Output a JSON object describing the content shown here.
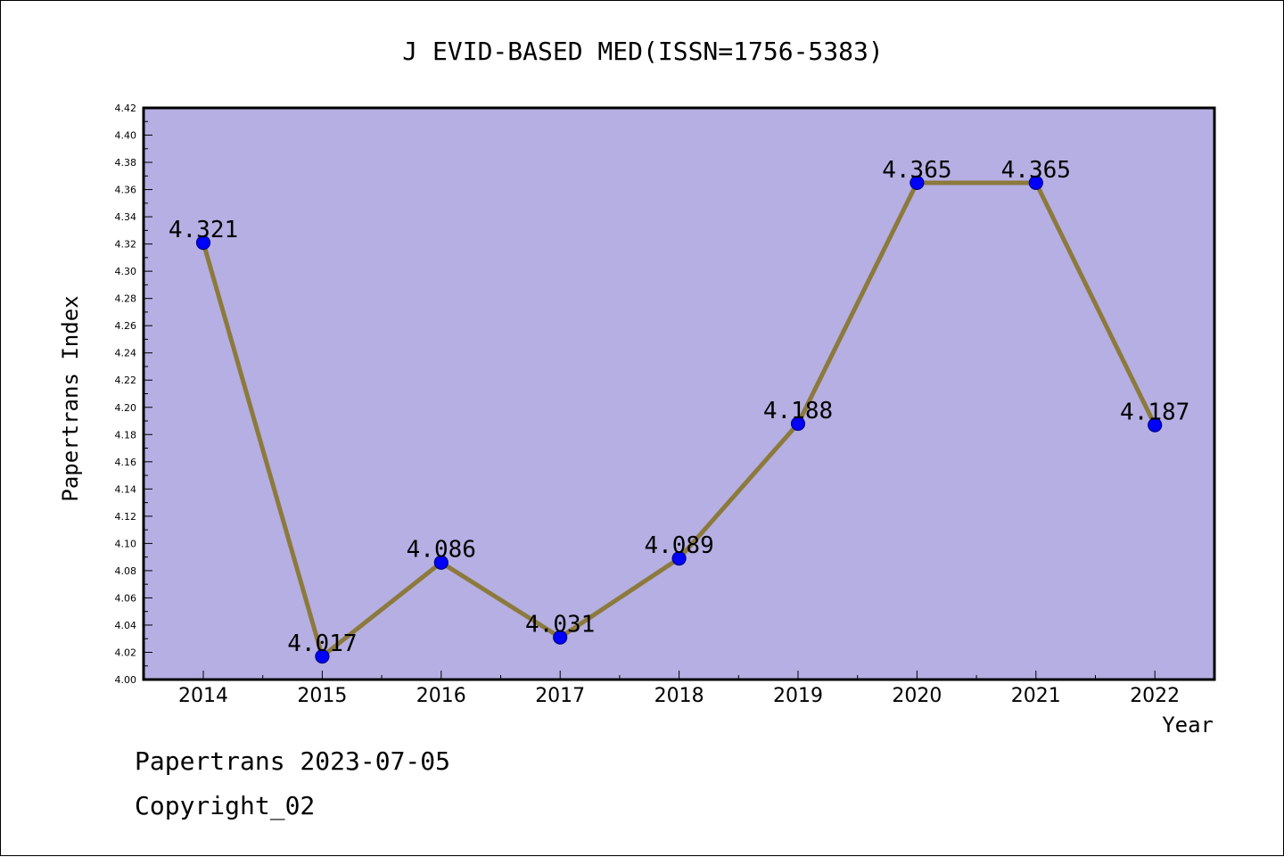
{
  "chart_data": {
    "type": "line",
    "title": "J EVID-BASED MED(ISSN=1756-5383)",
    "xlabel": "Year",
    "ylabel": "Papertrans Index",
    "categories": [
      "2014",
      "2015",
      "2016",
      "2017",
      "2018",
      "2019",
      "2020",
      "2021",
      "2022"
    ],
    "series": [
      {
        "values": [
          4.321,
          4.017,
          4.086,
          4.031,
          4.089,
          4.188,
          4.365,
          4.365,
          4.187
        ],
        "labels": [
          "4.321",
          "4.017",
          "4.086",
          "4.031",
          "4.089",
          "4.188",
          "4.365",
          "4.365",
          "4.187"
        ]
      }
    ],
    "ylim": [
      4.0,
      4.42
    ],
    "ytick_labels": [
      "4.00",
      "4.02",
      "4.04",
      "4.06",
      "4.08",
      "4.10",
      "4.12",
      "4.14",
      "4.16",
      "4.18",
      "4.20",
      "4.22",
      "4.24",
      "4.26",
      "4.28",
      "4.30",
      "4.32",
      "4.34",
      "4.36",
      "4.38",
      "4.40",
      "4.42"
    ],
    "grid": false,
    "legend": "none",
    "colors": {
      "plot_background": "#b5afe3",
      "line": "#8c7a3c",
      "marker": "#0000ff",
      "marker_edge": "#000080",
      "axis": "#000000"
    }
  },
  "footer": {
    "date_text": "Papertrans 2023-07-05",
    "copyright": "Copyright_02"
  }
}
